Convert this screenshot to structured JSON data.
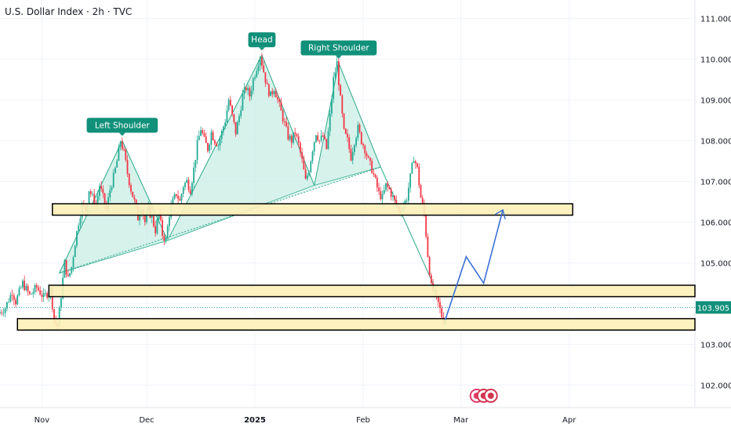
{
  "header": {
    "title": "U.S. Dollar Index · 2h · TVC"
  },
  "colors": {
    "up": "#22ab94",
    "down": "#f23645",
    "zone_fill": "#fdf1b8",
    "zone_stroke": "#000000",
    "pattern_fill": "#c9eee4",
    "pattern_stroke": "#2aa88a",
    "projection": "#3b6fd6",
    "label_bg": "#11907a",
    "grid": "#f0f3fa"
  },
  "chart_data": {
    "type": "candlestick",
    "y_axis": {
      "ticks": [
        "111.000",
        "110.000",
        "109.000",
        "108.000",
        "107.000",
        "106.000",
        "105.000",
        "104.000",
        "103.000",
        "102.000"
      ],
      "ylim": [
        101.45,
        111.45
      ]
    },
    "x_axis": {
      "ticks": [
        {
          "label": "Nov",
          "day": 0
        },
        {
          "label": "Dec",
          "day": 30
        },
        {
          "label": "2025",
          "day": 61,
          "bold": true
        },
        {
          "label": "Feb",
          "day": 92
        },
        {
          "label": "Mar",
          "day": 120
        },
        {
          "label": "Apr",
          "day": 151
        }
      ],
      "xlim": [
        -12,
        187
      ]
    },
    "current_price": {
      "label": "103.905",
      "value": 103.905
    },
    "price_path": [
      [
        -12,
        103.75
      ],
      [
        -10,
        103.9
      ],
      [
        -8,
        104.3
      ],
      [
        -7,
        104.05
      ],
      [
        -5,
        104.5
      ],
      [
        -3,
        104.2
      ],
      [
        -1,
        104.4
      ],
      [
        1,
        104.15
      ],
      [
        3,
        104.35
      ],
      [
        4,
        103.6
      ],
      [
        5,
        103.45
      ],
      [
        6,
        104.2
      ],
      [
        7,
        105.0
      ],
      [
        8,
        104.6
      ],
      [
        9,
        104.9
      ],
      [
        10,
        105.5
      ],
      [
        11,
        106.0
      ],
      [
        12,
        106.4
      ],
      [
        13,
        106.3
      ],
      [
        14,
        106.8
      ],
      [
        15,
        106.6
      ],
      [
        16,
        106.4
      ],
      [
        17,
        106.9
      ],
      [
        18,
        106.6
      ],
      [
        19,
        106.3
      ],
      [
        20,
        106.8
      ],
      [
        21,
        107.1
      ],
      [
        22,
        107.5
      ],
      [
        23,
        108.0
      ],
      [
        24,
        107.7
      ],
      [
        25,
        107.2
      ],
      [
        26,
        106.8
      ],
      [
        27,
        106.5
      ],
      [
        28,
        106.1
      ],
      [
        29,
        106.4
      ],
      [
        30,
        106.0
      ],
      [
        31,
        106.3
      ],
      [
        32,
        106.1
      ],
      [
        33,
        105.8
      ],
      [
        34,
        106.2
      ],
      [
        35,
        105.7
      ],
      [
        36,
        105.55
      ],
      [
        37,
        106.2
      ],
      [
        38,
        106.5
      ],
      [
        39,
        106.7
      ],
      [
        40,
        106.5
      ],
      [
        41,
        106.9
      ],
      [
        42,
        107.0
      ],
      [
        43,
        106.8
      ],
      [
        44,
        107.3
      ],
      [
        45,
        107.9
      ],
      [
        46,
        108.3
      ],
      [
        47,
        108.0
      ],
      [
        48,
        107.8
      ],
      [
        49,
        108.2
      ],
      [
        50,
        108.0
      ],
      [
        51,
        107.9
      ],
      [
        52,
        108.2
      ],
      [
        53,
        108.5
      ],
      [
        54,
        109.0
      ],
      [
        55,
        108.6
      ],
      [
        56,
        108.2
      ],
      [
        57,
        108.6
      ],
      [
        58,
        109.1
      ],
      [
        59,
        109.3
      ],
      [
        60,
        109.1
      ],
      [
        61,
        109.5
      ],
      [
        62,
        109.8
      ],
      [
        63,
        110.1
      ],
      [
        64,
        109.7
      ],
      [
        65,
        109.3
      ],
      [
        66,
        109.1
      ],
      [
        67,
        109.3
      ],
      [
        68,
        109.0
      ],
      [
        69,
        108.7
      ],
      [
        70,
        108.4
      ],
      [
        71,
        108.1
      ],
      [
        72,
        108.0
      ],
      [
        73,
        108.2
      ],
      [
        74,
        107.9
      ],
      [
        75,
        107.5
      ],
      [
        76,
        107.0
      ],
      [
        77,
        107.3
      ],
      [
        78,
        107.8
      ],
      [
        79,
        108.2
      ],
      [
        80,
        108.0
      ],
      [
        81,
        108.1
      ],
      [
        82,
        107.8
      ],
      [
        83,
        108.6
      ],
      [
        84,
        109.5
      ],
      [
        85,
        109.9
      ],
      [
        86,
        109.0
      ],
      [
        87,
        108.2
      ],
      [
        88,
        108.0
      ],
      [
        89,
        107.6
      ],
      [
        90,
        108.0
      ],
      [
        91,
        108.3
      ],
      [
        92,
        108.0
      ],
      [
        93,
        107.8
      ],
      [
        94,
        107.5
      ],
      [
        95,
        107.3
      ],
      [
        96,
        107.0
      ],
      [
        97,
        106.7
      ],
      [
        98,
        106.6
      ],
      [
        99,
        106.9
      ],
      [
        100,
        106.8
      ],
      [
        101,
        106.6
      ],
      [
        102,
        106.4
      ],
      [
        103,
        106.3
      ],
      [
        104,
        106.4
      ],
      [
        105,
        106.6
      ],
      [
        106,
        107.1
      ],
      [
        107,
        107.6
      ],
      [
        108,
        107.3
      ],
      [
        109,
        106.6
      ],
      [
        110,
        106.2
      ],
      [
        111,
        105.2
      ],
      [
        112,
        104.4
      ],
      [
        113,
        104.2
      ],
      [
        114,
        104.0
      ],
      [
        115,
        103.7
      ],
      [
        115.5,
        103.6
      ]
    ],
    "candle_seed": 7,
    "zones": [
      {
        "x0": 3,
        "x1": 152,
        "y0": 106.17,
        "y1": 106.45
      },
      {
        "x0": 2,
        "x1": 187,
        "y0": 104.17,
        "y1": 104.45
      },
      {
        "x0": -7,
        "x1": 187,
        "y0": 103.35,
        "y1": 103.63
      }
    ],
    "pattern": {
      "left_shoulder": [
        [
          5,
          104.75
        ],
        [
          23,
          108.0
        ],
        [
          36,
          105.55
        ]
      ],
      "head": [
        [
          36,
          105.55
        ],
        [
          63,
          110.1
        ],
        [
          78,
          106.9
        ]
      ],
      "right_shoulder": [
        [
          78,
          106.9
        ],
        [
          85,
          109.9
        ],
        [
          97,
          107.35
        ]
      ],
      "neckline": [
        [
          5,
          104.75
        ],
        [
          97,
          107.35
        ]
      ],
      "drop": [
        [
          97,
          107.35
        ],
        [
          113,
          104.3
        ]
      ]
    },
    "projection": [
      [
        115.5,
        103.6
      ],
      [
        121.5,
        105.15
      ],
      [
        126.5,
        104.5
      ],
      [
        132,
        106.3
      ]
    ],
    "annotations": [
      {
        "text": "Left Shoulder",
        "x": 23,
        "y": 108.0
      },
      {
        "text": "Head",
        "x": 63,
        "y": 110.1
      },
      {
        "text": "Right Shoulder",
        "x": 85,
        "y": 109.9
      }
    ]
  }
}
